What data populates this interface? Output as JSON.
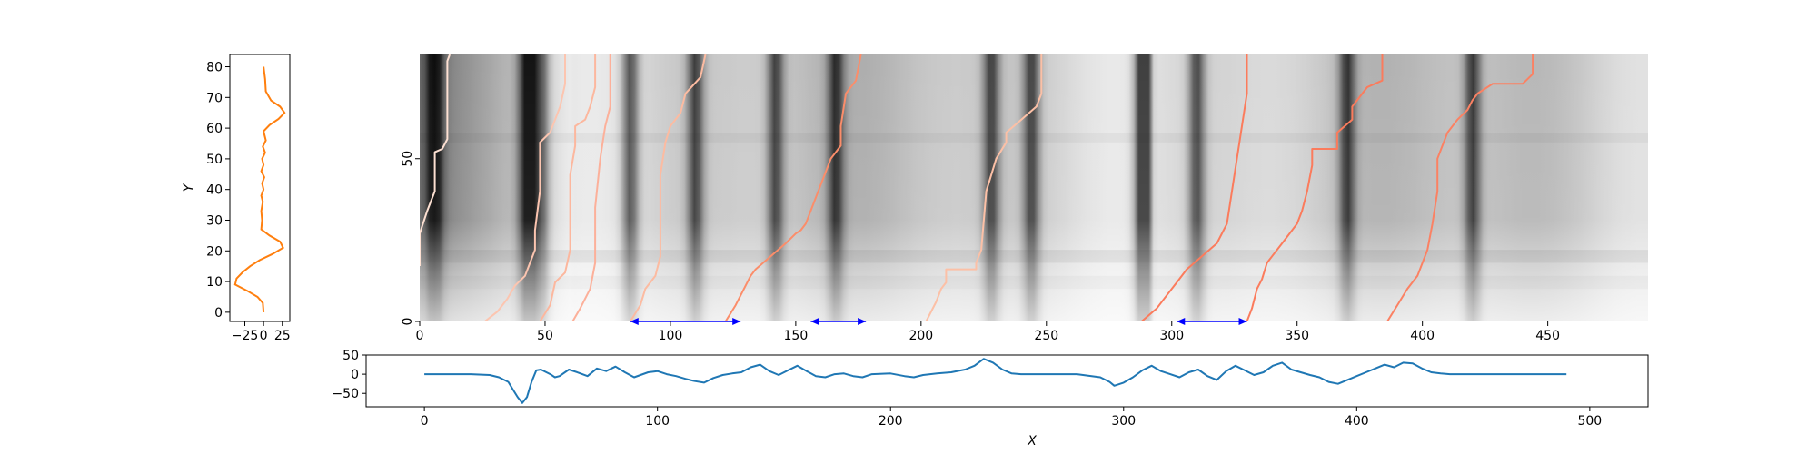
{
  "chart_data": [
    {
      "panel": "left-profile",
      "type": "line",
      "xlabel": "",
      "ylabel": "Y",
      "xlim": [
        -45,
        35
      ],
      "ylim": [
        -3,
        84
      ],
      "xticks": [
        -25,
        0,
        25
      ],
      "xtick_labels": [
        "−25",
        "0",
        "25"
      ],
      "yticks": [
        0,
        10,
        20,
        30,
        40,
        50,
        60,
        70,
        80
      ],
      "ytick_labels": [
        "0",
        "10",
        "20",
        "30",
        "40",
        "50",
        "60",
        "70",
        "80"
      ],
      "series": [
        {
          "color": "#ff7f0e",
          "x": [
            0,
            -1,
            -8,
            -22,
            -38,
            -36,
            -28,
            -18,
            -5,
            12,
            26,
            22,
            8,
            -3,
            -2,
            -3,
            -1,
            -3,
            0,
            -2,
            1,
            -3,
            0,
            -2,
            2,
            -1,
            3,
            0,
            8,
            20,
            28,
            22,
            10,
            3,
            2,
            0
          ],
          "y": [
            0,
            3,
            5,
            7,
            9,
            11,
            13,
            15,
            17,
            19,
            21,
            23,
            25,
            27,
            30,
            33,
            36,
            38,
            40,
            42,
            44,
            46,
            48,
            50,
            52,
            54,
            56,
            59,
            61,
            63,
            65,
            67,
            69,
            72,
            76,
            80
          ]
        }
      ]
    },
    {
      "panel": "main-heatmap",
      "type": "heatmap",
      "xlim": [
        0,
        490
      ],
      "ylim": [
        0,
        82
      ],
      "xticks": [
        0,
        50,
        100,
        150,
        200,
        250,
        300,
        350,
        400,
        450
      ],
      "xtick_labels": [
        "0",
        "50",
        "100",
        "150",
        "200",
        "250",
        "300",
        "350",
        "400",
        "450"
      ],
      "yticks": [
        0,
        50
      ],
      "ytick_labels": [
        "0",
        "50"
      ],
      "colormap": "grayscale",
      "dark_bands_x": [
        6,
        42,
        48,
        84,
        110,
        142,
        166,
        228,
        244,
        288,
        310,
        370,
        420
      ],
      "arrows": [
        {
          "x0": 84,
          "x1": 128,
          "y": 0,
          "color": "#0000ff"
        },
        {
          "x0": 156,
          "x1": 178,
          "y": 0,
          "color": "#0000ff"
        },
        {
          "x0": 302,
          "x1": 330,
          "y": 0,
          "color": "#0000ff"
        }
      ],
      "tracks": [
        {
          "color": "#fde0d2",
          "x": [
            0,
            0,
            3,
            6,
            6,
            9,
            11,
            11,
            12
          ],
          "y": [
            17,
            27,
            34,
            40,
            52,
            53,
            56,
            80,
            82
          ]
        },
        {
          "color": "#fcc5b0",
          "x": [
            26,
            31,
            35,
            38,
            42,
            44,
            46,
            46,
            48,
            48,
            52,
            54,
            56,
            58,
            58
          ],
          "y": [
            0,
            3,
            7,
            11,
            14,
            18,
            22,
            28,
            40,
            55,
            58,
            62,
            66,
            73,
            82
          ]
        },
        {
          "color": "#fcb79e",
          "x": [
            48,
            52,
            54,
            58,
            60,
            60,
            60,
            62,
            62,
            66,
            68,
            70,
            70
          ],
          "y": [
            0,
            5,
            12,
            15,
            22,
            35,
            45,
            54,
            60,
            62,
            66,
            72,
            82
          ]
        },
        {
          "color": "#fcb09a",
          "x": [
            61,
            64,
            68,
            70,
            70,
            72,
            73,
            74,
            76,
            76
          ],
          "y": [
            0,
            4,
            10,
            18,
            35,
            50,
            55,
            60,
            66,
            82
          ]
        },
        {
          "color": "#fcbba1",
          "x": [
            84,
            88,
            90,
            94,
            96,
            96,
            98,
            100,
            104,
            106,
            112,
            114
          ],
          "y": [
            0,
            5,
            10,
            14,
            20,
            45,
            55,
            60,
            64,
            70,
            75,
            82
          ]
        },
        {
          "color": "#fb8d6a",
          "x": [
            122,
            126,
            130,
            132,
            134,
            140,
            146,
            150,
            152,
            154,
            164,
            166,
            168,
            168,
            170,
            174,
            176
          ],
          "y": [
            0,
            5,
            11,
            14,
            16,
            20,
            24,
            27,
            28,
            30,
            50,
            52,
            54,
            60,
            70,
            74,
            82
          ]
        },
        {
          "color": "#fcc0a6",
          "x": [
            202,
            206,
            208,
            210,
            210,
            222,
            222,
            224,
            226,
            230,
            234,
            234,
            240,
            246,
            248,
            248
          ],
          "y": [
            0,
            6,
            10,
            12,
            16,
            16,
            18,
            22,
            40,
            50,
            55,
            58,
            62,
            66,
            70,
            82
          ]
        },
        {
          "color": "#fb7b5c",
          "x": [
            288,
            294,
            298,
            302,
            306,
            312,
            318,
            322,
            324,
            326,
            328,
            330,
            330
          ],
          "y": [
            0,
            4,
            8,
            12,
            16,
            20,
            24,
            30,
            40,
            50,
            60,
            70,
            82
          ]
        },
        {
          "color": "#fb7b5c",
          "x": [
            330,
            332,
            334,
            336,
            338,
            340,
            344,
            350,
            352,
            354,
            356,
            356,
            366,
            366,
            372,
            372,
            378,
            384,
            384
          ],
          "y": [
            0,
            4,
            10,
            13,
            18,
            20,
            24,
            30,
            34,
            40,
            48,
            53,
            53,
            58,
            62,
            66,
            72,
            74,
            82
          ]
        },
        {
          "color": "#fb8163",
          "x": [
            386,
            390,
            394,
            396,
            398,
            400,
            402,
            404,
            406,
            406,
            408,
            410,
            414,
            418,
            420,
            422,
            428,
            440,
            444,
            444
          ],
          "y": [
            0,
            5,
            10,
            12,
            14,
            18,
            22,
            30,
            40,
            50,
            54,
            58,
            62,
            65,
            68,
            70,
            73,
            73,
            76,
            82
          ]
        }
      ]
    },
    {
      "panel": "bottom-signal",
      "type": "line",
      "xlabel": "X",
      "ylabel": "",
      "xlim": [
        -25,
        525
      ],
      "ylim": [
        -85,
        50
      ],
      "xticks": [
        0,
        100,
        200,
        300,
        400,
        500
      ],
      "xtick_labels": [
        "0",
        "100",
        "200",
        "300",
        "400",
        "500"
      ],
      "yticks": [
        -50,
        0,
        50
      ],
      "ytick_labels": [
        "−50",
        "0",
        "50"
      ],
      "series": [
        {
          "color": "#1f77b4",
          "x": [
            0,
            10,
            20,
            28,
            32,
            36,
            38,
            40,
            42,
            44,
            46,
            48,
            50,
            54,
            56,
            58,
            62,
            66,
            70,
            74,
            78,
            82,
            86,
            90,
            96,
            100,
            104,
            108,
            112,
            116,
            120,
            124,
            128,
            132,
            136,
            140,
            144,
            148,
            152,
            156,
            160,
            164,
            168,
            172,
            176,
            180,
            184,
            188,
            192,
            200,
            206,
            210,
            214,
            220,
            226,
            232,
            236,
            240,
            244,
            248,
            252,
            256,
            262,
            270,
            280,
            290,
            294,
            296,
            300,
            304,
            308,
            312,
            316,
            320,
            324,
            328,
            332,
            336,
            340,
            344,
            348,
            352,
            356,
            360,
            364,
            368,
            372,
            376,
            380,
            384,
            388,
            392,
            396,
            400,
            404,
            408,
            412,
            416,
            420,
            424,
            428,
            432,
            436,
            440,
            450,
            460,
            470,
            480,
            490
          ],
          "y": [
            0,
            0,
            0,
            -2,
            -8,
            -20,
            -40,
            -60,
            -75,
            -60,
            -20,
            10,
            12,
            0,
            -8,
            -5,
            12,
            4,
            -5,
            15,
            8,
            20,
            5,
            -8,
            5,
            8,
            0,
            -5,
            -12,
            -18,
            -22,
            -10,
            -2,
            2,
            5,
            18,
            25,
            8,
            -2,
            10,
            22,
            8,
            -5,
            -8,
            0,
            2,
            -5,
            -8,
            0,
            2,
            -5,
            -8,
            -2,
            2,
            5,
            12,
            22,
            40,
            30,
            12,
            2,
            0,
            0,
            0,
            0,
            -8,
            -20,
            -30,
            -22,
            -8,
            10,
            22,
            8,
            0,
            -8,
            5,
            12,
            -5,
            -15,
            8,
            22,
            10,
            -2,
            5,
            22,
            30,
            12,
            5,
            -2,
            -8,
            -20,
            -25,
            -15,
            -5,
            5,
            15,
            25,
            18,
            30,
            28,
            15,
            5,
            2,
            0,
            0,
            0,
            0,
            0,
            0
          ]
        }
      ]
    }
  ]
}
